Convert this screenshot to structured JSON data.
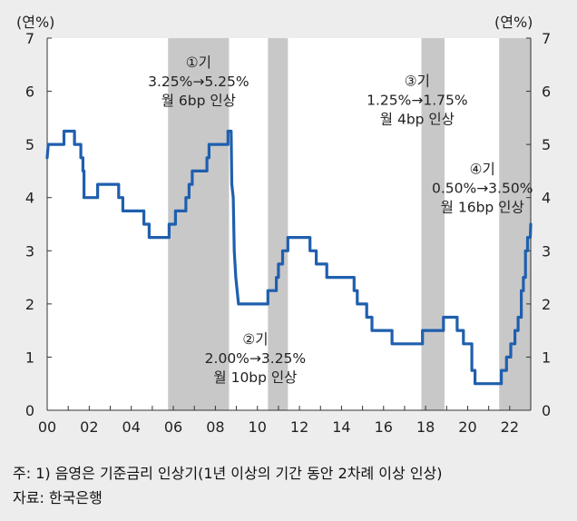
{
  "chart_data": {
    "type": "line",
    "ylabel_left": "(연%)",
    "ylabel_right": "(연%)",
    "ylim": [
      0,
      7
    ],
    "yticks": [
      "0",
      "1",
      "2",
      "3",
      "4",
      "5",
      "6",
      "7"
    ],
    "xlim": [
      2000,
      2023
    ],
    "xticks": [
      {
        "x": 2000,
        "label": "00"
      },
      {
        "x": 2002,
        "label": "02"
      },
      {
        "x": 2004,
        "label": "04"
      },
      {
        "x": 2006,
        "label": "06"
      },
      {
        "x": 2008,
        "label": "08"
      },
      {
        "x": 2010,
        "label": "10"
      },
      {
        "x": 2012,
        "label": "12"
      },
      {
        "x": 2014,
        "label": "14"
      },
      {
        "x": 2016,
        "label": "16"
      },
      {
        "x": 2018,
        "label": "18"
      },
      {
        "x": 2020,
        "label": "20"
      },
      {
        "x": 2022,
        "label": "22"
      }
    ],
    "shaded_periods": [
      {
        "start": 2005.75,
        "end": 2008.65
      },
      {
        "start": 2010.5,
        "end": 2011.45
      },
      {
        "start": 2017.8,
        "end": 2018.9
      },
      {
        "start": 2021.5,
        "end": 2023.0
      }
    ],
    "annotations": [
      {
        "lines": [
          "①기",
          "3.25%→5.25%",
          "월 6bp 인상"
        ],
        "x": 2007.2,
        "y": 6.45
      },
      {
        "lines": [
          "②기",
          "2.00%→3.25%",
          "월 10bp 인상"
        ],
        "x": 2009.9,
        "y": 1.25
      },
      {
        "lines": [
          "③기",
          "1.25%→1.75%",
          "월 4bp 인상"
        ],
        "x": 2017.6,
        "y": 6.1
      },
      {
        "lines": [
          "④기",
          "0.50%→3.50%",
          "월 16bp 인상"
        ],
        "x": 2020.7,
        "y": 4.45
      }
    ],
    "series": [
      {
        "color": "#1f5fae",
        "points": [
          [
            2000.0,
            4.75
          ],
          [
            2000.05,
            5.0
          ],
          [
            2000.8,
            5.0
          ],
          [
            2000.8,
            5.25
          ],
          [
            2001.3,
            5.25
          ],
          [
            2001.3,
            5.0
          ],
          [
            2001.6,
            5.0
          ],
          [
            2001.6,
            4.75
          ],
          [
            2001.7,
            4.75
          ],
          [
            2001.7,
            4.5
          ],
          [
            2001.75,
            4.5
          ],
          [
            2001.75,
            4.0
          ],
          [
            2002.4,
            4.0
          ],
          [
            2002.4,
            4.25
          ],
          [
            2003.4,
            4.25
          ],
          [
            2003.4,
            4.0
          ],
          [
            2003.6,
            4.0
          ],
          [
            2003.6,
            3.75
          ],
          [
            2004.6,
            3.75
          ],
          [
            2004.6,
            3.5
          ],
          [
            2004.85,
            3.5
          ],
          [
            2004.85,
            3.25
          ],
          [
            2005.8,
            3.25
          ],
          [
            2005.8,
            3.5
          ],
          [
            2006.1,
            3.5
          ],
          [
            2006.1,
            3.75
          ],
          [
            2006.6,
            3.75
          ],
          [
            2006.6,
            4.0
          ],
          [
            2006.75,
            4.0
          ],
          [
            2006.75,
            4.25
          ],
          [
            2006.9,
            4.25
          ],
          [
            2006.9,
            4.5
          ],
          [
            2007.6,
            4.5
          ],
          [
            2007.6,
            4.75
          ],
          [
            2007.7,
            4.75
          ],
          [
            2007.7,
            5.0
          ],
          [
            2008.6,
            5.0
          ],
          [
            2008.6,
            5.25
          ],
          [
            2008.75,
            5.25
          ],
          [
            2008.78,
            4.25
          ],
          [
            2008.85,
            4.0
          ],
          [
            2008.9,
            3.0
          ],
          [
            2008.97,
            2.5
          ],
          [
            2009.1,
            2.0
          ],
          [
            2010.5,
            2.0
          ],
          [
            2010.5,
            2.25
          ],
          [
            2010.9,
            2.25
          ],
          [
            2010.9,
            2.5
          ],
          [
            2011.0,
            2.5
          ],
          [
            2011.0,
            2.75
          ],
          [
            2011.2,
            2.75
          ],
          [
            2011.2,
            3.0
          ],
          [
            2011.45,
            3.0
          ],
          [
            2011.45,
            3.25
          ],
          [
            2012.5,
            3.25
          ],
          [
            2012.5,
            3.0
          ],
          [
            2012.8,
            3.0
          ],
          [
            2012.8,
            2.75
          ],
          [
            2013.3,
            2.75
          ],
          [
            2013.3,
            2.5
          ],
          [
            2014.6,
            2.5
          ],
          [
            2014.6,
            2.25
          ],
          [
            2014.75,
            2.25
          ],
          [
            2014.75,
            2.0
          ],
          [
            2015.2,
            2.0
          ],
          [
            2015.2,
            1.75
          ],
          [
            2015.45,
            1.75
          ],
          [
            2015.45,
            1.5
          ],
          [
            2016.4,
            1.5
          ],
          [
            2016.4,
            1.25
          ],
          [
            2017.85,
            1.25
          ],
          [
            2017.85,
            1.5
          ],
          [
            2018.85,
            1.5
          ],
          [
            2018.85,
            1.75
          ],
          [
            2019.5,
            1.75
          ],
          [
            2019.5,
            1.5
          ],
          [
            2019.8,
            1.5
          ],
          [
            2019.8,
            1.25
          ],
          [
            2020.2,
            1.25
          ],
          [
            2020.2,
            0.75
          ],
          [
            2020.35,
            0.75
          ],
          [
            2020.35,
            0.5
          ],
          [
            2021.6,
            0.5
          ],
          [
            2021.6,
            0.75
          ],
          [
            2021.85,
            0.75
          ],
          [
            2021.85,
            1.0
          ],
          [
            2022.05,
            1.0
          ],
          [
            2022.05,
            1.25
          ],
          [
            2022.25,
            1.25
          ],
          [
            2022.25,
            1.5
          ],
          [
            2022.4,
            1.5
          ],
          [
            2022.4,
            1.75
          ],
          [
            2022.55,
            1.75
          ],
          [
            2022.55,
            2.25
          ],
          [
            2022.65,
            2.25
          ],
          [
            2022.65,
            2.5
          ],
          [
            2022.75,
            2.5
          ],
          [
            2022.75,
            3.0
          ],
          [
            2022.85,
            3.0
          ],
          [
            2022.85,
            3.25
          ],
          [
            2022.98,
            3.25
          ],
          [
            2023.0,
            3.5
          ]
        ]
      }
    ]
  },
  "notes": {
    "note1": "주: 1) 음영은 기준금리 인상기(1년 이상의 기간 동안 2차례 이상 인상)",
    "note2": "자료: 한국은행"
  }
}
